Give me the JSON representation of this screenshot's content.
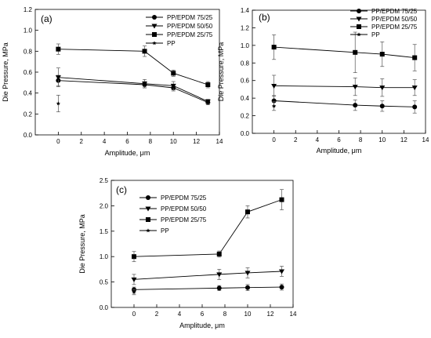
{
  "chart_data": [
    {
      "type": "line",
      "panel_label": "(a)",
      "xlabel": "Amplitude, μm",
      "ylabel": "Die Pressure, MPa",
      "xlim": [
        -2,
        14
      ],
      "ylim": [
        0.0,
        1.2
      ],
      "xticks": [
        "0",
        "2",
        "4",
        "6",
        "8",
        "10",
        "12",
        "14"
      ],
      "yticks": [
        "0.0",
        "0.2",
        "0.4",
        "0.6",
        "0.8",
        "1.0",
        "1.2"
      ],
      "legend_position": "top-right",
      "series": [
        {
          "name": "PP/EPDM 75/25",
          "marker": "circle",
          "x": [
            0,
            7.5,
            10,
            13
          ],
          "y": [
            0.52,
            0.48,
            0.45,
            0.31
          ],
          "err": [
            0.05,
            0.03,
            0.03,
            0.02
          ]
        },
        {
          "name": "PP/EPDM 50/50",
          "marker": "triangle-down",
          "x": [
            0,
            7.5,
            10,
            13
          ],
          "y": [
            0.55,
            0.49,
            0.47,
            0.32
          ],
          "err": [
            0.09,
            0.04,
            0.04,
            0.02
          ]
        },
        {
          "name": "PP/EPDM 25/75",
          "marker": "square",
          "x": [
            0,
            7.5,
            10,
            13
          ],
          "y": [
            0.82,
            0.8,
            0.59,
            0.48
          ],
          "err": [
            0.05,
            0.05,
            0.03,
            0.03
          ]
        },
        {
          "name": "PP",
          "marker": "star",
          "x": [
            0
          ],
          "y": [
            0.3
          ],
          "err": [
            0.08
          ]
        }
      ]
    },
    {
      "type": "line",
      "panel_label": "(b)",
      "xlabel": "Amplitude, μm",
      "ylabel": "Die Pressure, MPa",
      "xlim": [
        -2,
        14
      ],
      "ylim": [
        0.0,
        1.4
      ],
      "xticks": [
        "0",
        "2",
        "4",
        "6",
        "8",
        "10",
        "12",
        "14"
      ],
      "yticks": [
        "0.0",
        "0.2",
        "0.4",
        "0.6",
        "0.8",
        "1.0",
        "1.2",
        "1.4"
      ],
      "legend_position": "top-right",
      "series": [
        {
          "name": "PP/EPDM 75/25",
          "marker": "circle",
          "x": [
            0,
            7.5,
            10,
            13
          ],
          "y": [
            0.37,
            0.32,
            0.31,
            0.3
          ],
          "err": [
            0.06,
            0.06,
            0.06,
            0.07
          ]
        },
        {
          "name": "PP/EPDM 50/50",
          "marker": "triangle-down",
          "x": [
            0,
            7.5,
            10,
            13
          ],
          "y": [
            0.54,
            0.53,
            0.52,
            0.52
          ],
          "err": [
            0.12,
            0.1,
            0.1,
            0.09
          ]
        },
        {
          "name": "PP/EPDM 25/75",
          "marker": "square",
          "x": [
            0,
            7.5,
            10,
            13
          ],
          "y": [
            0.98,
            0.92,
            0.9,
            0.86
          ],
          "err": [
            0.14,
            0.23,
            0.14,
            0.15
          ]
        },
        {
          "name": "PP",
          "marker": "star",
          "x": [
            0
          ],
          "y": [
            0.31
          ],
          "err": [
            0.05
          ]
        }
      ]
    },
    {
      "type": "line",
      "panel_label": "(c)",
      "xlabel": "Amplitude, μm",
      "ylabel": "Die Pressure, MPa",
      "xlim": [
        -2,
        14
      ],
      "ylim": [
        0.0,
        2.5
      ],
      "xticks": [
        "0",
        "2",
        "4",
        "6",
        "8",
        "10",
        "12",
        "14"
      ],
      "yticks": [
        "0.0",
        "0.5",
        "1.0",
        "1.5",
        "2.0",
        "2.5"
      ],
      "legend_position": "top-left",
      "series": [
        {
          "name": "PP/EPDM 75/25",
          "marker": "circle",
          "x": [
            0,
            7.5,
            10,
            13
          ],
          "y": [
            0.35,
            0.38,
            0.39,
            0.4
          ],
          "err": [
            0.05,
            0.05,
            0.06,
            0.06
          ]
        },
        {
          "name": "PP/EPDM 50/50",
          "marker": "triangle-down",
          "x": [
            0,
            7.5,
            10,
            13
          ],
          "y": [
            0.55,
            0.65,
            0.68,
            0.71
          ],
          "err": [
            0.1,
            0.1,
            0.1,
            0.1
          ]
        },
        {
          "name": "PP/EPDM 25/75",
          "marker": "square",
          "x": [
            0,
            7.5,
            10,
            13
          ],
          "y": [
            1.0,
            1.05,
            1.88,
            2.12
          ],
          "err": [
            0.1,
            0.06,
            0.12,
            0.2
          ]
        },
        {
          "name": "PP",
          "marker": "star",
          "x": [
            0
          ],
          "y": [
            0.3
          ],
          "err": [
            0.05
          ]
        }
      ]
    }
  ]
}
